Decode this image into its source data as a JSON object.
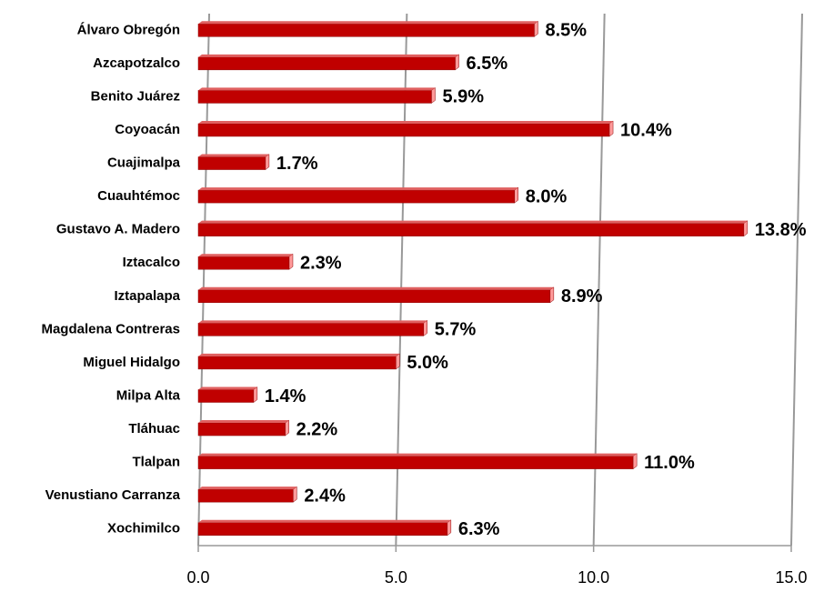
{
  "chart_data": {
    "type": "bar",
    "orientation": "horizontal",
    "color": "#c00000",
    "categories": [
      "Álvaro Obregón",
      "Azcapotzalco",
      "Benito Juárez",
      "Coyoacán",
      "Cuajimalpa",
      "Cuauhtémoc",
      "Gustavo A. Madero",
      "Iztacalco",
      "Iztapalapa",
      "Magdalena Contreras",
      "Miguel Hidalgo",
      "Milpa Alta",
      "Tláhuac",
      "Tlalpan",
      "Venustiano Carranza",
      "Xochimilco"
    ],
    "values": [
      8.5,
      6.5,
      5.9,
      10.4,
      1.7,
      8.0,
      13.8,
      2.3,
      8.9,
      5.7,
      5.0,
      1.4,
      2.2,
      11.0,
      2.4,
      6.3
    ],
    "value_labels": [
      "8.5%",
      "6.5%",
      "5.9%",
      "10.4%",
      "1.7%",
      "8.0%",
      "13.8%",
      "2.3%",
      "8.9%",
      "5.7%",
      "5.0%",
      "1.4%",
      "2.2%",
      "11.0%",
      "2.4%",
      "6.3%"
    ],
    "xlim": [
      0,
      15
    ],
    "xticks": [
      {
        "value": 0,
        "label": "0.0"
      },
      {
        "value": 5,
        "label": "5.0"
      },
      {
        "value": 10,
        "label": "10.0"
      },
      {
        "value": 15,
        "label": "15.0"
      }
    ],
    "grid": true
  }
}
